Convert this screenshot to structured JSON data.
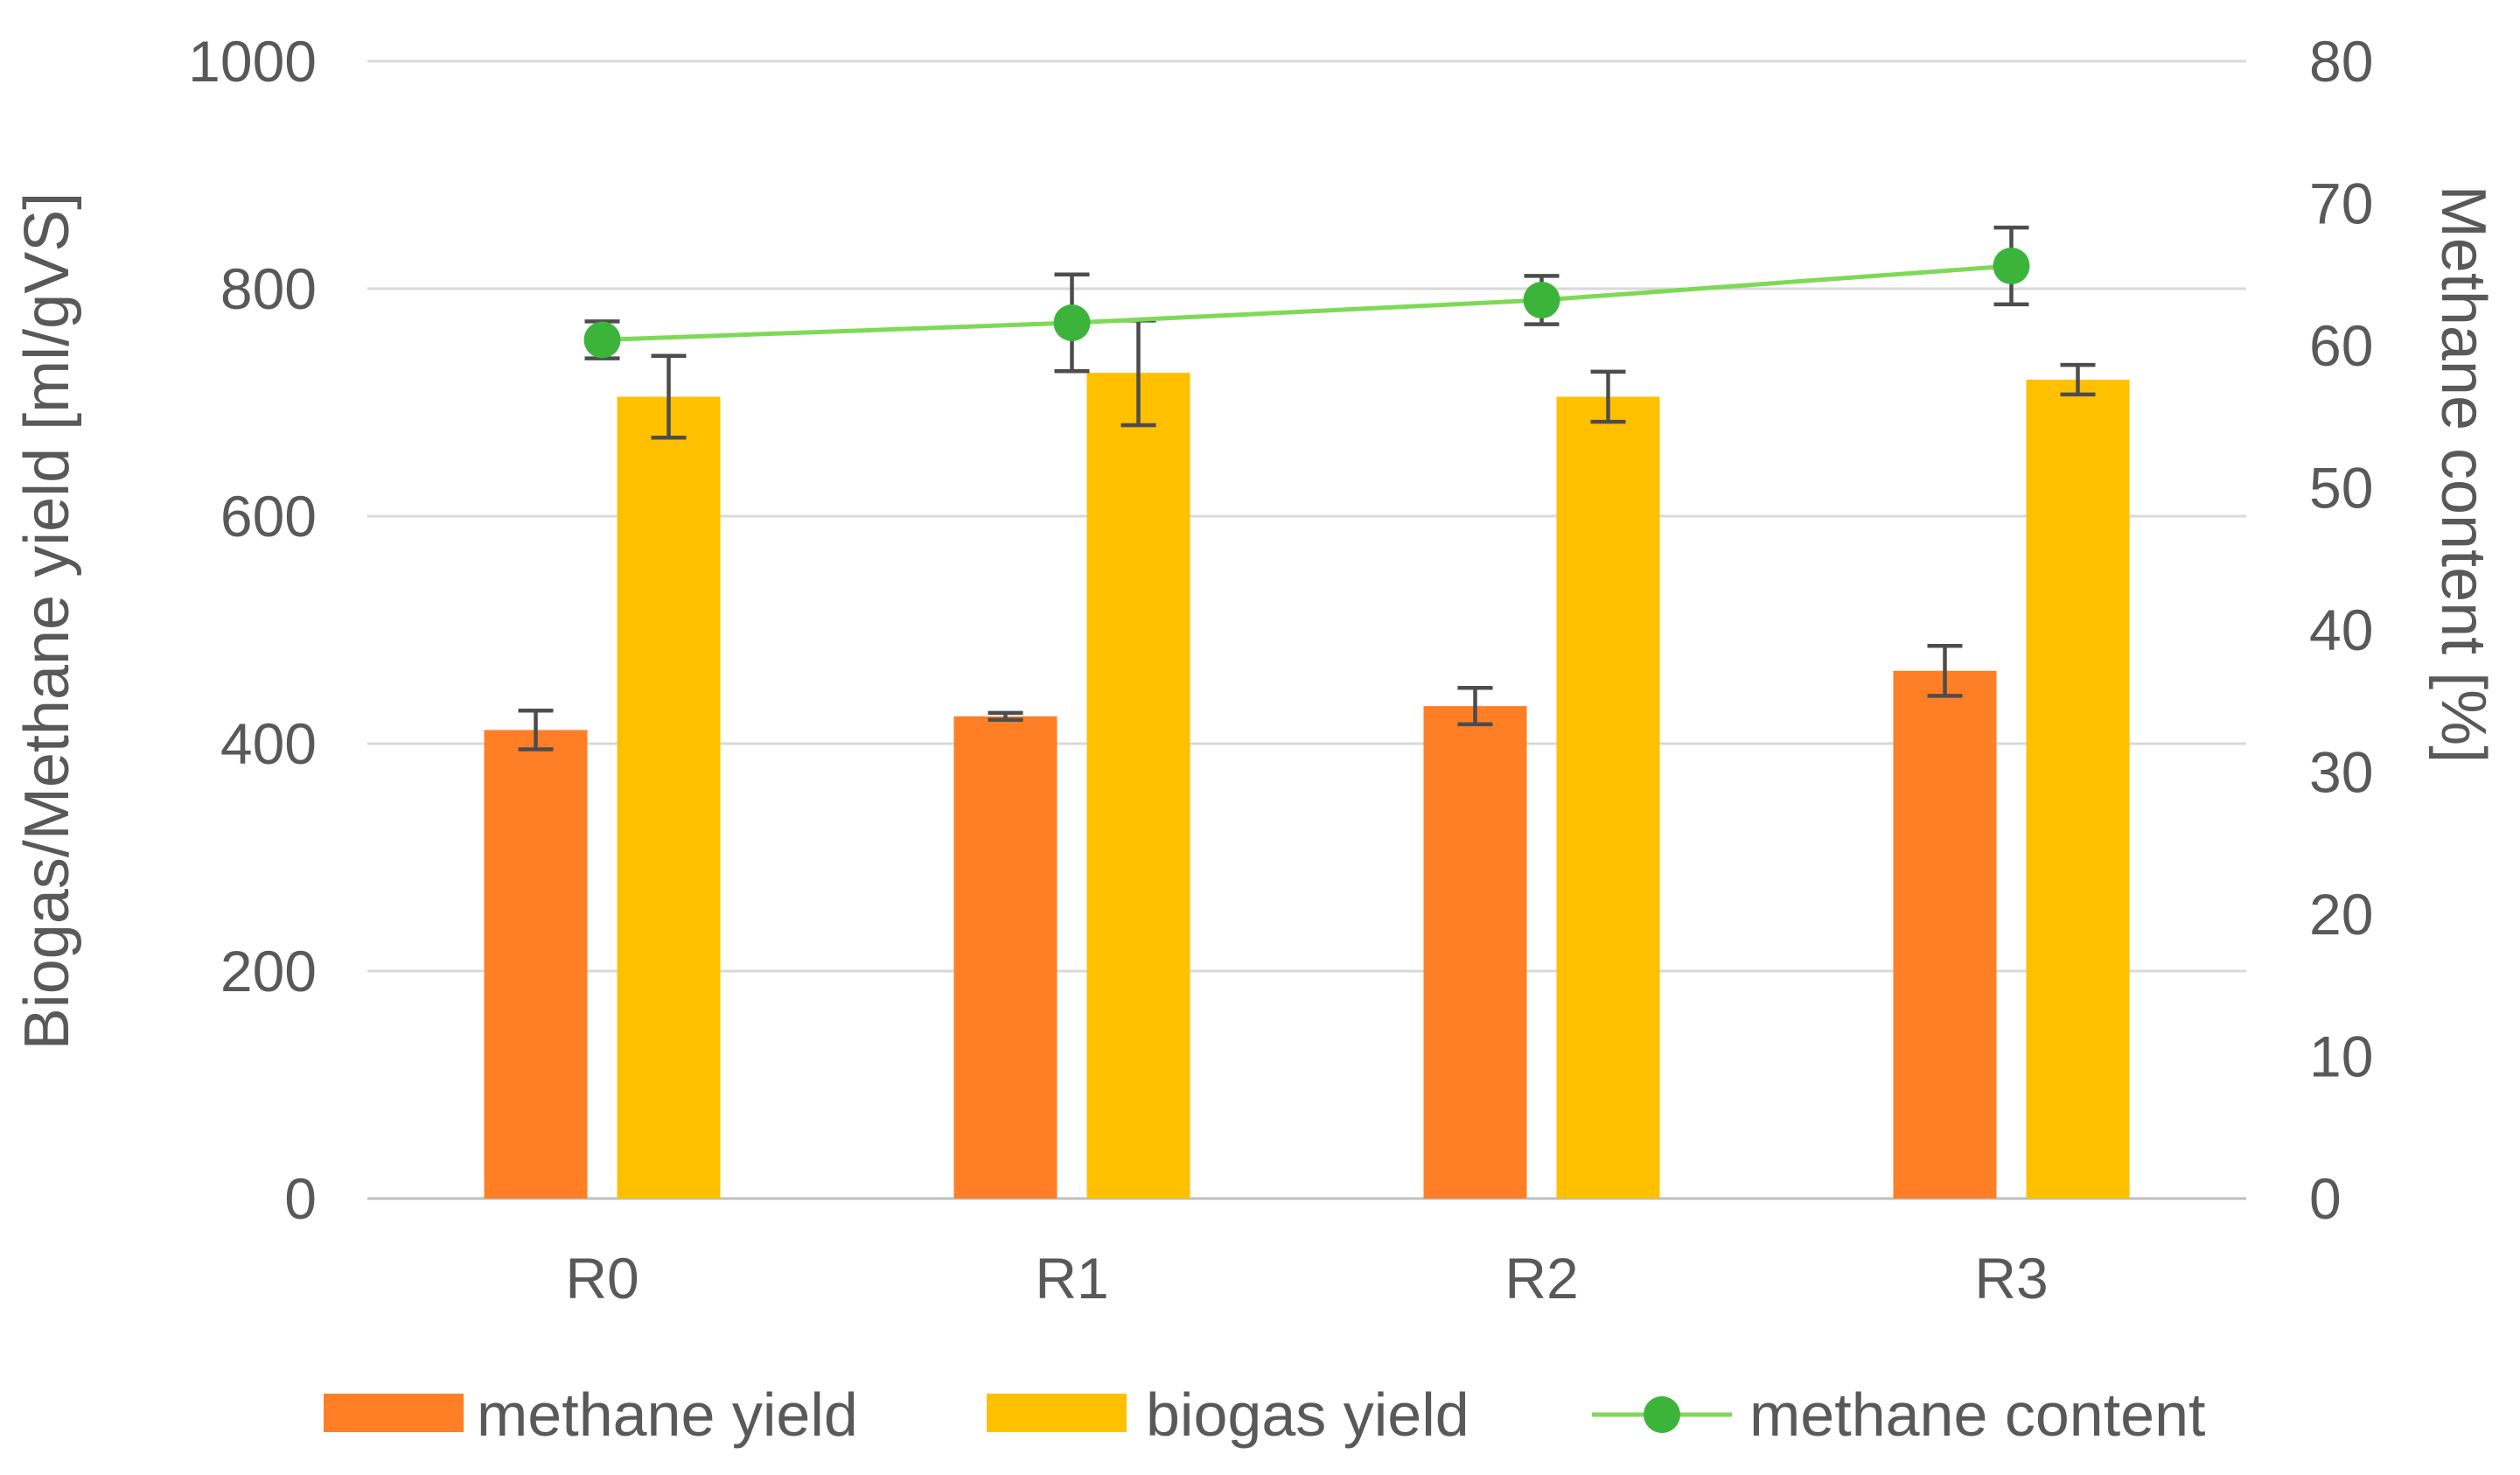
{
  "chart_data": {
    "type": "bar",
    "title": "",
    "categories": [
      "R0",
      "R1",
      "R2",
      "R3"
    ],
    "ylabel": "Biogas/Methane yield [ml/gVS]",
    "y2label": "Methane content [%]",
    "xlabel": "",
    "ylim": [
      0,
      1000
    ],
    "y_ticks": [
      0,
      200,
      400,
      600,
      800,
      1000
    ],
    "y2lim": [
      0,
      80
    ],
    "y2_ticks": [
      0,
      10,
      20,
      30,
      40,
      50,
      60,
      70,
      80
    ],
    "grid": true,
    "legend_position": "bottom",
    "series": [
      {
        "name": "methane yield",
        "kind": "bar",
        "axis": "left",
        "color": "#ff7f27",
        "values": [
          412,
          424,
          433,
          464
        ],
        "errors": [
          17,
          3,
          16,
          22
        ]
      },
      {
        "name": "biogas yield",
        "kind": "bar",
        "axis": "left",
        "color": "#ffc000",
        "values": [
          705,
          726,
          705,
          720
        ],
        "errors": [
          36,
          46,
          22,
          13
        ]
      },
      {
        "name": "methane content",
        "kind": "line",
        "axis": "right",
        "color": "#3cb43c",
        "line_color": "#7ed957",
        "values": [
          60.4,
          61.6,
          63.2,
          65.6
        ],
        "errors": [
          1.3,
          3.4,
          1.7,
          2.7
        ]
      }
    ]
  }
}
